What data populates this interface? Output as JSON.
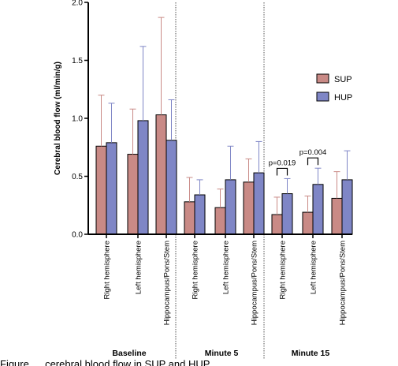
{
  "chart_data": {
    "type": "bar",
    "ylabel": "Cerebral blood flow (ml/min/g)",
    "ylim": [
      0,
      2.0
    ],
    "yticks": [
      "0.0",
      "0.5",
      "1.0",
      "1.5",
      "2.0"
    ],
    "groups": [
      {
        "label": "Baseline",
        "categories": [
          "Right hemisphere",
          "Left hemisphere",
          "Hippocampus/Pons/Stem"
        ]
      },
      {
        "label": "Minute 5",
        "categories": [
          "Right hemisphere",
          "Left hemisphere",
          "Hippocampus/Pons/Stem"
        ]
      },
      {
        "label": "Minute 15",
        "categories": [
          "Right hemisphere",
          "Left hemisphere",
          "Hippocampus/Pons/Stem"
        ]
      }
    ],
    "series": [
      {
        "name": "SUP",
        "color": "#c98a86",
        "values": [
          0.76,
          0.69,
          1.03,
          0.28,
          0.23,
          0.45,
          0.17,
          0.19,
          0.31
        ],
        "errors": [
          0.44,
          0.39,
          0.84,
          0.21,
          0.16,
          0.2,
          0.15,
          0.14,
          0.23
        ]
      },
      {
        "name": "HUP",
        "color": "#7f86c6",
        "values": [
          0.79,
          0.98,
          0.81,
          0.34,
          0.47,
          0.53,
          0.35,
          0.43,
          0.47
        ],
        "errors": [
          0.34,
          0.64,
          0.35,
          0.13,
          0.29,
          0.27,
          0.13,
          0.14,
          0.25
        ]
      }
    ],
    "annotations": [
      {
        "text": "p=0.019",
        "category_index": 6
      },
      {
        "text": "p=0.004",
        "category_index": 7
      }
    ],
    "legend_position": "right"
  },
  "caption": "Figure … cerebral blood flow in SUP and HUP …"
}
